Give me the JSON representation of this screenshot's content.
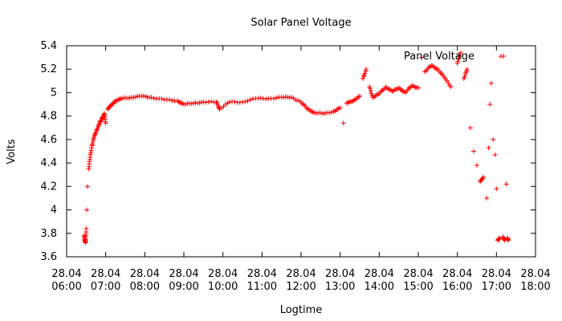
{
  "chart_data": {
    "type": "scatter",
    "title": "Solar Panel Voltage",
    "xlabel": "Logtime",
    "ylabel": "Volts",
    "x_ticks": [
      {
        "value": 6,
        "line1": "28.04",
        "line2": "06:00"
      },
      {
        "value": 7,
        "line1": "28.04",
        "line2": "07:00"
      },
      {
        "value": 8,
        "line1": "28.04",
        "line2": "08:00"
      },
      {
        "value": 9,
        "line1": "28.04",
        "line2": "09:00"
      },
      {
        "value": 10,
        "line1": "28.04",
        "line2": "10:00"
      },
      {
        "value": 11,
        "line1": "28.04",
        "line2": "11:00"
      },
      {
        "value": 12,
        "line1": "28.04",
        "line2": "12:00"
      },
      {
        "value": 13,
        "line1": "28.04",
        "line2": "13:00"
      },
      {
        "value": 14,
        "line1": "28.04",
        "line2": "14:00"
      },
      {
        "value": 15,
        "line1": "28.04",
        "line2": "15:00"
      },
      {
        "value": 16,
        "line1": "28.04",
        "line2": "16:00"
      },
      {
        "value": 17,
        "line1": "28.04",
        "line2": "17:00"
      },
      {
        "value": 18,
        "line1": "28.04",
        "line2": "18:00"
      }
    ],
    "y_ticks": [
      "3.6",
      "3.8",
      "4",
      "4.2",
      "4.4",
      "4.6",
      "4.8",
      "5",
      "5.2",
      "5.4"
    ],
    "xlim": [
      "28.04 06:00",
      "28.04 18:00"
    ],
    "ylim": [
      3.6,
      5.4
    ],
    "grid": false,
    "legend_position": "top-right",
    "series": [
      {
        "name": "Panel Voltage",
        "color": "#ff0000",
        "marker": "plus",
        "points": [
          [
            "28.04 06:27",
            3.78
          ],
          [
            "28.04 06:28",
            3.74
          ],
          [
            "28.04 06:29",
            3.72
          ],
          [
            "28.04 06:30",
            3.84
          ],
          [
            "28.04 06:31",
            4.0
          ],
          [
            "28.04 06:32",
            4.2
          ],
          [
            "28.04 06:34",
            4.35
          ],
          [
            "28.04 06:36",
            4.45
          ],
          [
            "28.04 06:39",
            4.55
          ],
          [
            "28.04 06:42",
            4.62
          ],
          [
            "28.04 06:46",
            4.68
          ],
          [
            "28.04 06:50",
            4.73
          ],
          [
            "28.04 06:54",
            4.78
          ],
          [
            "28.04 06:58",
            4.82
          ],
          [
            "28.04 07:00",
            4.74
          ],
          [
            "28.04 07:03",
            4.86
          ],
          [
            "28.04 07:08",
            4.89
          ],
          [
            "28.04 07:15",
            4.93
          ],
          [
            "28.04 07:25",
            4.95
          ],
          [
            "28.04 07:40",
            4.96
          ],
          [
            "28.04 07:55",
            4.97
          ],
          [
            "28.04 08:10",
            4.96
          ],
          [
            "28.04 08:30",
            4.94
          ],
          [
            "28.04 08:50",
            4.93
          ],
          [
            "28.04 09:00",
            4.9
          ],
          [
            "28.04 09:15",
            4.91
          ],
          [
            "28.04 09:30",
            4.92
          ],
          [
            "28.04 09:50",
            4.92
          ],
          [
            "28.04 09:55",
            4.86
          ],
          [
            "28.04 10:10",
            4.92
          ],
          [
            "28.04 10:30",
            4.92
          ],
          [
            "28.04 10:50",
            4.95
          ],
          [
            "28.04 11:10",
            4.95
          ],
          [
            "28.04 11:30",
            4.96
          ],
          [
            "28.04 11:45",
            4.96
          ],
          [
            "28.04 12:00",
            4.92
          ],
          [
            "28.04 12:10",
            4.86
          ],
          [
            "28.04 12:20",
            4.83
          ],
          [
            "28.04 12:35",
            4.82
          ],
          [
            "28.04 12:50",
            4.84
          ],
          [
            "28.04 13:00",
            4.87
          ],
          [
            "28.04 13:05",
            4.74
          ],
          [
            "28.04 13:10",
            4.91
          ],
          [
            "28.04 13:20",
            4.93
          ],
          [
            "28.04 13:30",
            4.97
          ],
          [
            "28.04 13:35",
            5.12
          ],
          [
            "28.04 13:40",
            5.2
          ],
          [
            "28.04 13:45",
            5.05
          ],
          [
            "28.04 13:50",
            4.96
          ],
          [
            "28.04 14:00",
            4.99
          ],
          [
            "28.04 14:10",
            5.05
          ],
          [
            "28.04 14:20",
            5.01
          ],
          [
            "28.04 14:30",
            5.04
          ],
          [
            "28.04 14:40",
            5.0
          ],
          [
            "28.04 14:50",
            5.06
          ],
          [
            "28.04 15:00",
            5.04
          ],
          [
            "28.04 15:05",
            5.3
          ],
          [
            "28.04 15:10",
            5.18
          ],
          [
            "28.04 15:20",
            5.23
          ],
          [
            "28.04 15:30",
            5.2
          ],
          [
            "28.04 15:40",
            5.13
          ],
          [
            "28.04 15:50",
            5.05
          ],
          [
            "28.04 16:00",
            5.25
          ],
          [
            "28.04 16:05",
            5.34
          ],
          [
            "28.04 16:10",
            5.12
          ],
          [
            "28.04 16:15",
            5.2
          ],
          [
            "28.04 16:20",
            4.7
          ],
          [
            "28.04 16:25",
            4.5
          ],
          [
            "28.04 16:30",
            4.38
          ],
          [
            "28.04 16:35",
            4.24
          ],
          [
            "28.04 16:40",
            4.28
          ],
          [
            "28.04 16:45",
            4.1
          ],
          [
            "28.04 16:48",
            4.53
          ],
          [
            "28.04 16:50",
            4.9
          ],
          [
            "28.04 16:52",
            5.08
          ],
          [
            "28.04 16:55",
            4.6
          ],
          [
            "28.04 16:58",
            4.47
          ],
          [
            "28.04 17:00",
            4.18
          ],
          [
            "28.04 17:02",
            3.74
          ],
          [
            "28.04 17:05",
            3.76
          ],
          [
            "28.04 17:07",
            5.31
          ],
          [
            "28.04 17:10",
            3.77
          ],
          [
            "28.04 17:13",
            3.74
          ],
          [
            "28.04 17:15",
            4.22
          ],
          [
            "28.04 17:17",
            3.76
          ],
          [
            "28.04 17:18",
            3.74
          ]
        ]
      }
    ]
  }
}
